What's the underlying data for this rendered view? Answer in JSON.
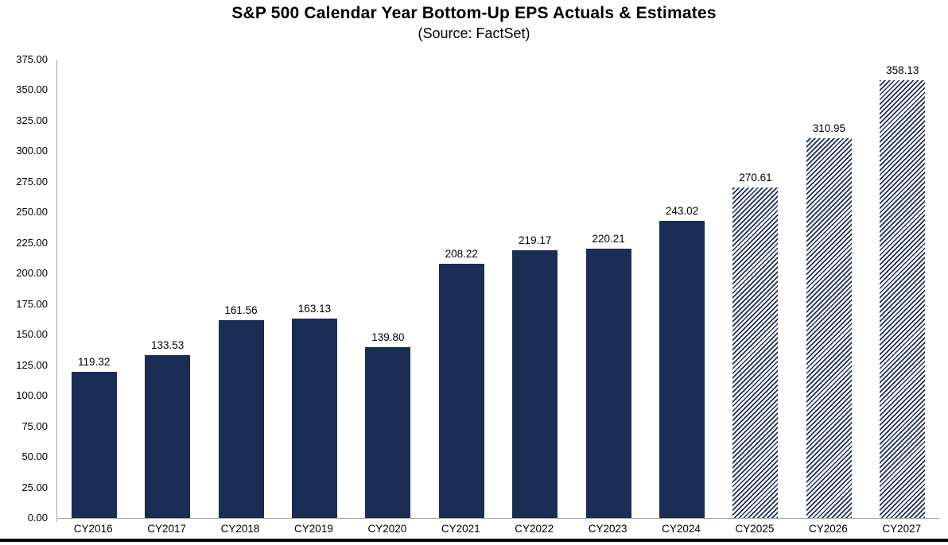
{
  "chart_data": {
    "type": "bar",
    "title": "S&P 500 Calendar Year Bottom-Up EPS Actuals & Estimates",
    "subtitle": "(Source: FactSet)",
    "categories": [
      "CY2016",
      "CY2017",
      "CY2018",
      "CY2019",
      "CY2020",
      "CY2021",
      "CY2022",
      "CY2023",
      "CY2024",
      "CY2025",
      "CY2026",
      "CY2027"
    ],
    "values": [
      119.32,
      133.53,
      161.56,
      163.13,
      139.8,
      208.22,
      219.17,
      220.21,
      243.02,
      270.61,
      310.95,
      358.13
    ],
    "value_labels": [
      "119.32",
      "133.53",
      "161.56",
      "163.13",
      "139.80",
      "208.22",
      "219.17",
      "220.21",
      "243.02",
      "270.61",
      "310.95",
      "358.13"
    ],
    "bar_styles": [
      "actual",
      "actual",
      "actual",
      "actual",
      "actual",
      "actual",
      "actual",
      "actual",
      "actual",
      "estimate",
      "estimate",
      "estimate"
    ],
    "xlabel": "",
    "ylabel": "",
    "ylim": [
      0,
      375
    ],
    "ytick_step": 25,
    "ytick_labels": [
      "0.00",
      "25.00",
      "50.00",
      "75.00",
      "100.00",
      "125.00",
      "150.00",
      "175.00",
      "200.00",
      "225.00",
      "250.00",
      "275.00",
      "300.00",
      "325.00",
      "350.00",
      "375.00"
    ],
    "grid": false,
    "legend": "none",
    "colors": {
      "actual_bar": "#1b2c55",
      "estimate_hatch_stripe": "#1b2c55",
      "estimate_hatch_background": "#ffffff",
      "axis_line": "#a6a6a6",
      "text": "#000000",
      "bottom_rule": "#000000"
    }
  }
}
